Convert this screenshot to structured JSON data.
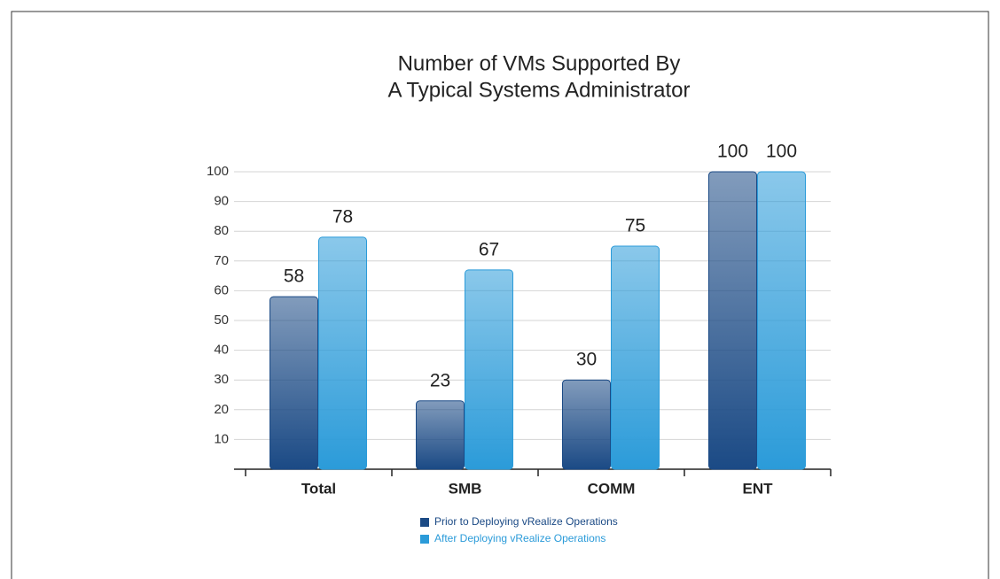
{
  "chart_data": {
    "type": "bar",
    "title": [
      "Number of VMs Supported By",
      "A Typical Systems Administrator"
    ],
    "categories": [
      "Total",
      "SMB",
      "COMM",
      "ENT"
    ],
    "series": [
      {
        "name": "Prior to Deploying vRealize Operations",
        "color": "#1b4a85",
        "values": [
          58,
          23,
          30,
          100
        ]
      },
      {
        "name": "After Deploying vRealize Operations",
        "color": "#2b9bd9",
        "values": [
          78,
          67,
          75,
          100
        ]
      }
    ],
    "ylim": [
      0,
      100
    ],
    "yticks": [
      10,
      20,
      30,
      40,
      50,
      60,
      70,
      80,
      90,
      100
    ],
    "grid": true,
    "legend": "bottom"
  }
}
